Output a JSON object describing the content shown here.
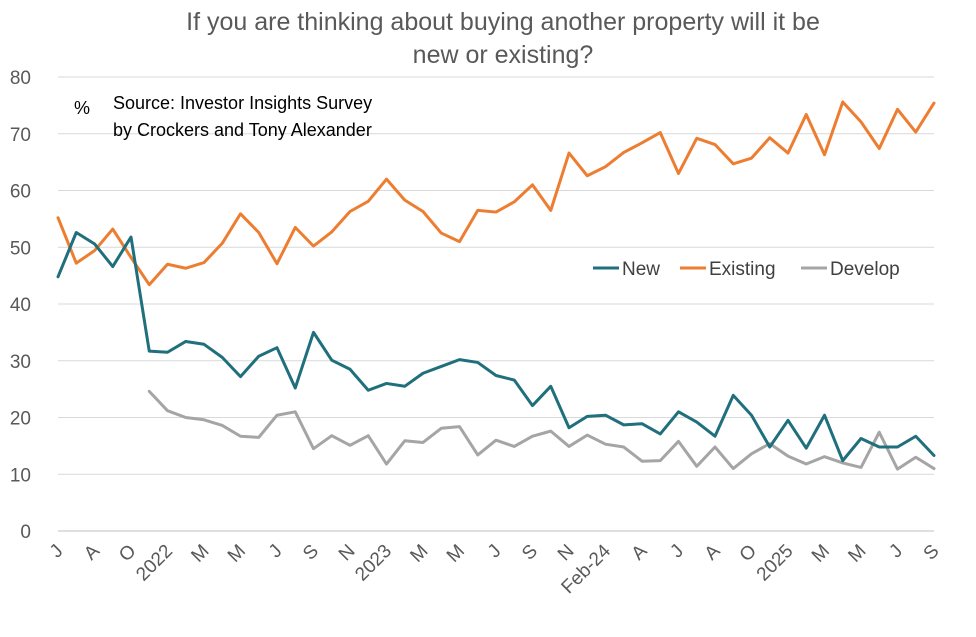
{
  "chart_data": {
    "type": "line",
    "title": [
      "If you are thinking about buying another property will it be",
      "new or existing?"
    ],
    "ylabel": "%",
    "source_note": [
      "Source: Investor Insights Survey",
      "by Crockers and Tony Alexander"
    ],
    "ylim": [
      0,
      80
    ],
    "yticks": [
      0,
      10,
      20,
      30,
      40,
      50,
      60,
      70,
      80
    ],
    "grid": true,
    "legend_position": "right-middle",
    "x_tick_labels": [
      "J",
      "A",
      "O",
      "2022",
      "M",
      "M",
      "J",
      "S",
      "N",
      "2023",
      "M",
      "M",
      "J",
      "S",
      "N",
      "Feb-24",
      "A",
      "J",
      "A",
      "O",
      "2025",
      "M",
      "M",
      "J",
      "S"
    ],
    "series": [
      {
        "name": "New",
        "color": "#1f6f7c",
        "values": [
          44.8,
          52.6,
          50.6,
          46.6,
          51.8,
          31.7,
          31.5,
          33.4,
          32.9,
          30.6,
          27.2,
          30.8,
          32.3,
          25.2,
          35.0,
          30.1,
          28.5,
          24.8,
          26.0,
          25.5,
          27.8,
          29.0,
          30.2,
          29.7,
          27.4,
          26.6,
          22.1,
          25.5,
          18.2,
          20.2,
          20.4,
          18.7,
          18.9,
          17.1,
          21.0,
          19.2,
          16.7,
          23.9,
          20.4,
          14.8,
          19.5,
          14.6,
          20.4,
          12.4,
          16.3,
          14.8,
          14.8,
          16.7,
          13.3
        ]
      },
      {
        "name": "Existing",
        "color": "#ed7d31",
        "values": [
          55.2,
          47.2,
          49.4,
          53.2,
          48.2,
          43.4,
          47.0,
          46.3,
          47.3,
          50.7,
          55.9,
          52.6,
          47.1,
          53.5,
          50.2,
          52.7,
          56.3,
          58.1,
          62.0,
          58.3,
          56.3,
          52.5,
          51.0,
          56.5,
          56.2,
          58.0,
          61.0,
          56.5,
          66.6,
          62.6,
          64.2,
          66.7,
          68.4,
          70.2,
          63.0,
          69.2,
          68.1,
          64.7,
          65.7,
          69.3,
          66.6,
          73.4,
          66.3,
          75.6,
          72.1,
          67.4,
          74.3,
          70.3,
          75.4
        ]
      },
      {
        "name": "Develop",
        "color": "#a5a5a5",
        "values": [
          null,
          null,
          null,
          null,
          null,
          24.6,
          21.2,
          20.0,
          19.6,
          18.6,
          16.7,
          16.5,
          20.4,
          21.0,
          14.5,
          16.8,
          15.1,
          16.8,
          11.8,
          15.9,
          15.6,
          18.1,
          18.4,
          13.4,
          16.0,
          14.9,
          16.7,
          17.6,
          14.9,
          16.9,
          15.3,
          14.8,
          12.3,
          12.4,
          15.8,
          11.4,
          14.8,
          11.0,
          13.6,
          15.4,
          13.2,
          11.8,
          13.1,
          12.0,
          11.2,
          17.4,
          10.9,
          13.0,
          11.0
        ]
      }
    ]
  }
}
